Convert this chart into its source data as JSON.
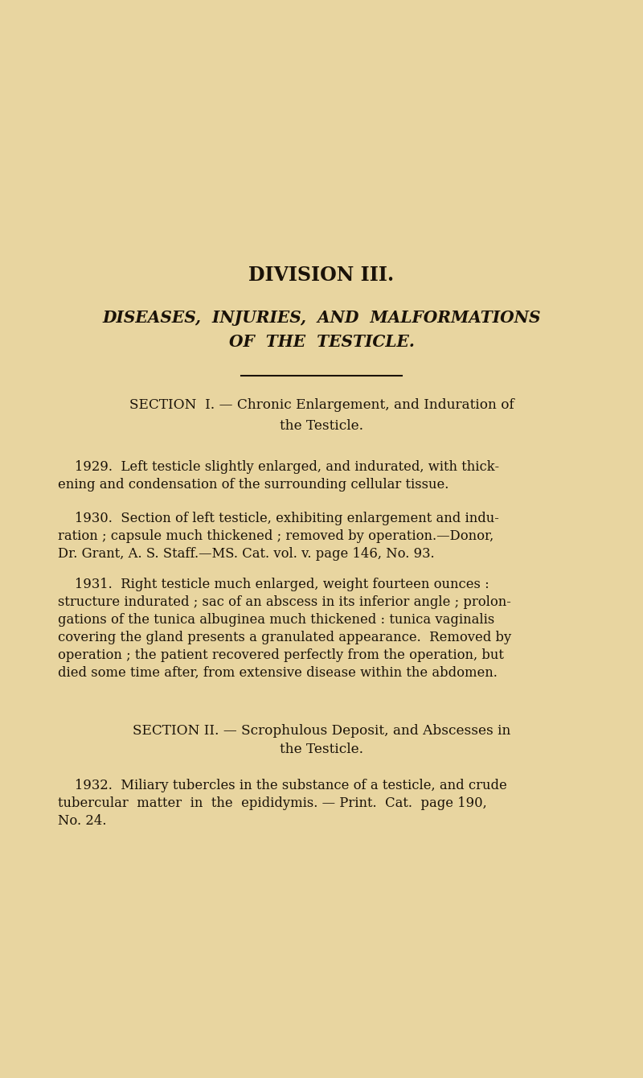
{
  "background_color": "#e8d5a0",
  "text_color": "#1a1208",
  "page_width": 8.0,
  "page_height": 13.4,
  "division_title": "DIVISION III.",
  "italic_title_line1": "DISEASES,  INJURIES,  AND  MALFORMATIONS",
  "italic_title_line2": "OF  THE  TESTICLE.",
  "section1_heading_line1": "SECTION  I. — Chronic Enlargement, and Induration of",
  "section1_heading_line2": "the Testicle.",
  "entry_1929_line1": "    1929.  Left testicle slightly enlarged, and indurated, with thick-",
  "entry_1929_line2": "ening and condensation of the surrounding cellular tissue.",
  "entry_1930_line1": "    1930.  Section of left testicle, exhibiting enlargement and indu-",
  "entry_1930_line2": "ration ; capsule much thickened ; removed by operation.—Donor,",
  "entry_1930_line3": "Dr. Grant, A. S. Staff.—MS. Cat. vol. v. page 146, No. 93.",
  "entry_1931_line1": "    1931.  Right testicle much enlarged, weight fourteen ounces :",
  "entry_1931_line2": "structure indurated ; sac of an abscess in its inferior angle ; prolon-",
  "entry_1931_line3": "gations of the tunica albuginea much thickened : tunica vaginalis",
  "entry_1931_line4": "covering the gland presents a granulated appearance.  Removed by",
  "entry_1931_line5": "operation ; the patient recovered perfectly from the operation, but",
  "entry_1931_line6": "died some time after, from extensive disease within the abdomen.",
  "section2_heading_line1": "SECTION II. — Scrophulous Deposit, and Abscesses in",
  "section2_heading_line2": "the Testicle.",
  "entry_1932_line1": "    1932.  Miliary tubercles in the substance of a testicle, and crude",
  "entry_1932_line2": "tubercular  matter  in  the  epididymis. — Print.  Cat.  page 190,",
  "entry_1932_line3": "No. 24."
}
